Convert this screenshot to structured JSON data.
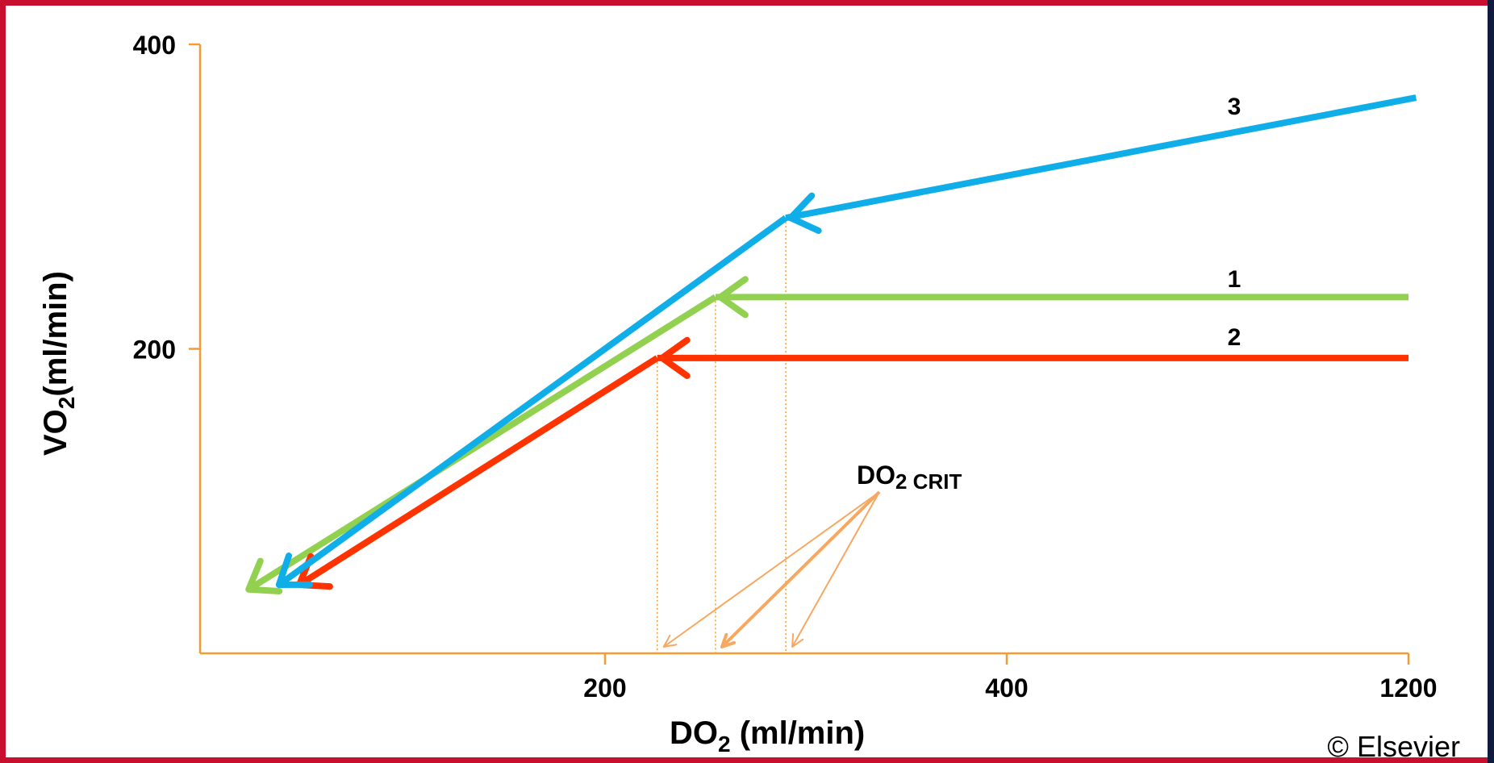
{
  "chart_data": {
    "type": "line",
    "colors": {
      "axis": "#f39c32",
      "annotation": "#f7a860"
    },
    "x_ticks": [
      "200",
      "400",
      "1200"
    ],
    "y_ticks": [
      "400",
      "200"
    ],
    "xlabel": {
      "main": "DO",
      "sub": "2",
      "rest": " (ml/min)"
    },
    "ylabel": {
      "main": "VO",
      "sub": "2",
      "rest": "(ml/min)"
    },
    "annotation": {
      "main": "DO",
      "sub": "2 CRIT"
    },
    "series": [
      {
        "name": "3",
        "color": "#10aee8",
        "critical": {
          "x": 290,
          "y": 286
        },
        "points": [
          {
            "x": 1215,
            "y": 365
          },
          {
            "x": 290,
            "y": 286
          },
          {
            "x": 39,
            "y": 45
          }
        ]
      },
      {
        "name": "1",
        "color": "#92d050",
        "critical": {
          "x": 255,
          "y": 234
        },
        "points": [
          {
            "x": 1200,
            "y": 234
          },
          {
            "x": 255,
            "y": 234
          },
          {
            "x": 24,
            "y": 42
          }
        ]
      },
      {
        "name": "2",
        "color": "#ff3300",
        "critical": {
          "x": 226,
          "y": 194
        },
        "points": [
          {
            "x": 1200,
            "y": 194
          },
          {
            "x": 226,
            "y": 194
          },
          {
            "x": 49,
            "y": 45
          }
        ]
      }
    ],
    "copyright": "© Elsevier"
  }
}
